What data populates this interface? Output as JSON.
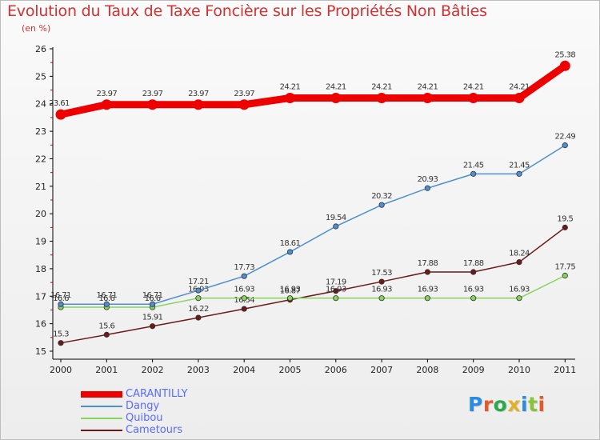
{
  "header": {
    "title": "Evolution du Taux de Taxe Foncière sur les Propriétés Non Bâties",
    "subtitle": "(en %)"
  },
  "logo": {
    "text": "Proxiti"
  },
  "chart_data": {
    "type": "line",
    "title": "Evolution du Taux de Taxe Foncière sur les Propriétés Non Bâties",
    "ylabel": "(en %)",
    "x": [
      "2000",
      "2001",
      "2002",
      "2003",
      "2004",
      "2005",
      "2006",
      "2007",
      "2008",
      "2009",
      "2010",
      "2011"
    ],
    "ylim": [
      15,
      26
    ],
    "yticks": [
      15,
      16,
      17,
      18,
      19,
      20,
      21,
      22,
      23,
      24,
      25,
      26
    ],
    "grid": false,
    "legend_position": "bottom-left",
    "series": [
      {
        "name": "CARANTILLY",
        "color": "#ee0000",
        "values": [
          23.61,
          23.97,
          23.97,
          23.97,
          23.97,
          24.21,
          24.21,
          24.21,
          24.21,
          24.21,
          24.21,
          25.38
        ],
        "labels": [
          "23.61",
          "23.97",
          "23.97",
          "23.97",
          "23.97",
          "24.21",
          "24.21",
          "24.21",
          "24.21",
          "24.21",
          "24.21",
          "25.38"
        ]
      },
      {
        "name": "Dangy",
        "color": "#4d8fd1",
        "values": [
          16.71,
          16.71,
          16.71,
          17.21,
          17.73,
          18.61,
          19.54,
          20.32,
          20.93,
          21.45,
          21.45,
          22.49
        ],
        "labels": [
          "16.71",
          "16.71",
          "16.71",
          "17.21",
          "17.73",
          "18.61",
          "19.54",
          "20.32",
          "20.93",
          "21.45",
          "21.45",
          "22.49"
        ]
      },
      {
        "name": "Quibou",
        "color": "#86d45c",
        "values": [
          16.6,
          16.6,
          16.6,
          16.93,
          16.93,
          16.93,
          16.93,
          16.93,
          16.93,
          16.93,
          16.93,
          17.75
        ],
        "labels": [
          "16.6",
          "16.6",
          "16.6",
          "16.93",
          "16.93",
          "16.93",
          "16.93",
          "16.93",
          "16.93",
          "16.93",
          "16.93",
          "17.75"
        ]
      },
      {
        "name": "Cametours",
        "color": "#6b1a1a",
        "values": [
          15.3,
          15.6,
          15.91,
          16.22,
          16.54,
          16.87,
          17.19,
          17.53,
          17.88,
          17.88,
          18.24,
          19.5
        ],
        "labels": [
          "15.3",
          "15.6",
          "15.91",
          "16.22",
          "16.54",
          "16.87",
          "17.19",
          "17.53",
          "17.88",
          "17.88",
          "18.24",
          "19.5"
        ]
      }
    ]
  }
}
